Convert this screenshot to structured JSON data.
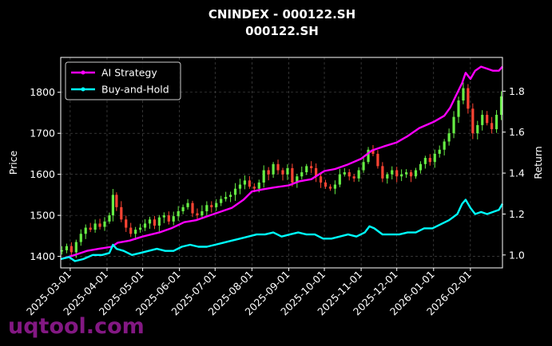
{
  "chart_data": {
    "type": "line",
    "title": "CNINDEX - 000122.SH",
    "subtitle": "000122.SH",
    "ylabel_left": "Price",
    "ylabel_right": "Return",
    "xlabel": "",
    "grid": true,
    "legend_placement": "top-left",
    "x_ticks": [
      "2025-03-01",
      "2025-04-01",
      "2025-05-01",
      "2025-06-01",
      "2025-07-01",
      "2025-08-01",
      "2025-09-01",
      "2025-10-01",
      "2025-11-01",
      "2025-12-01",
      "2026-01-01",
      "2026-02-01"
    ],
    "x_range": [
      "2025-02-21",
      "2026-02-28"
    ],
    "y_left_ticks": [
      1400,
      1500,
      1600,
      1700,
      1800
    ],
    "y_left_range": [
      1372,
      1885
    ],
    "y_right_ticks": [
      1.0,
      1.2,
      1.4,
      1.6,
      1.8
    ],
    "y_right_range": [
      0.937,
      1.965
    ],
    "price_candles": [
      {
        "date": "2025-02-22",
        "price": 1415
      },
      {
        "date": "2025-02-26",
        "price": 1425
      },
      {
        "date": "2025-03-02",
        "price": 1410
      },
      {
        "date": "2025-03-06",
        "price": 1435
      },
      {
        "date": "2025-03-10",
        "price": 1455
      },
      {
        "date": "2025-03-14",
        "price": 1470
      },
      {
        "date": "2025-03-18",
        "price": 1465
      },
      {
        "date": "2025-03-22",
        "price": 1480
      },
      {
        "date": "2025-03-26",
        "price": 1472
      },
      {
        "date": "2025-03-30",
        "price": 1485
      },
      {
        "date": "2025-04-03",
        "price": 1500
      },
      {
        "date": "2025-04-06",
        "price": 1550
      },
      {
        "date": "2025-04-09",
        "price": 1520
      },
      {
        "date": "2025-04-13",
        "price": 1490
      },
      {
        "date": "2025-04-17",
        "price": 1470
      },
      {
        "date": "2025-04-21",
        "price": 1455
      },
      {
        "date": "2025-04-25",
        "price": 1465
      },
      {
        "date": "2025-04-29",
        "price": 1470
      },
      {
        "date": "2025-05-03",
        "price": 1480
      },
      {
        "date": "2025-05-07",
        "price": 1490
      },
      {
        "date": "2025-05-11",
        "price": 1475
      },
      {
        "date": "2025-05-15",
        "price": 1495
      },
      {
        "date": "2025-05-19",
        "price": 1500
      },
      {
        "date": "2025-05-23",
        "price": 1485
      },
      {
        "date": "2025-05-27",
        "price": 1498
      },
      {
        "date": "2025-05-31",
        "price": 1510
      },
      {
        "date": "2025-06-04",
        "price": 1520
      },
      {
        "date": "2025-06-08",
        "price": 1530
      },
      {
        "date": "2025-06-12",
        "price": 1505
      },
      {
        "date": "2025-06-16",
        "price": 1500
      },
      {
        "date": "2025-06-20",
        "price": 1510
      },
      {
        "date": "2025-06-24",
        "price": 1525
      },
      {
        "date": "2025-06-28",
        "price": 1520
      },
      {
        "date": "2025-07-02",
        "price": 1530
      },
      {
        "date": "2025-07-06",
        "price": 1540
      },
      {
        "date": "2025-07-10",
        "price": 1545
      },
      {
        "date": "2025-07-14",
        "price": 1550
      },
      {
        "date": "2025-07-18",
        "price": 1565
      },
      {
        "date": "2025-07-22",
        "price": 1575
      },
      {
        "date": "2025-07-26",
        "price": 1585
      },
      {
        "date": "2025-07-30",
        "price": 1570
      },
      {
        "date": "2025-08-03",
        "price": 1565
      },
      {
        "date": "2025-08-07",
        "price": 1580
      },
      {
        "date": "2025-08-11",
        "price": 1610
      },
      {
        "date": "2025-08-15",
        "price": 1600
      },
      {
        "date": "2025-08-19",
        "price": 1625
      },
      {
        "date": "2025-08-23",
        "price": 1610
      },
      {
        "date": "2025-08-27",
        "price": 1600
      },
      {
        "date": "2025-08-31",
        "price": 1615
      },
      {
        "date": "2025-09-04",
        "price": 1580
      },
      {
        "date": "2025-09-08",
        "price": 1595
      },
      {
        "date": "2025-09-12",
        "price": 1605
      },
      {
        "date": "2025-09-16",
        "price": 1620
      },
      {
        "date": "2025-09-20",
        "price": 1615
      },
      {
        "date": "2025-09-24",
        "price": 1595
      },
      {
        "date": "2025-09-28",
        "price": 1580
      },
      {
        "date": "2025-10-02",
        "price": 1570
      },
      {
        "date": "2025-10-06",
        "price": 1565
      },
      {
        "date": "2025-10-10",
        "price": 1575
      },
      {
        "date": "2025-10-14",
        "price": 1600
      },
      {
        "date": "2025-10-18",
        "price": 1605
      },
      {
        "date": "2025-10-22",
        "price": 1595
      },
      {
        "date": "2025-10-26",
        "price": 1590
      },
      {
        "date": "2025-10-30",
        "price": 1610
      },
      {
        "date": "2025-11-03",
        "price": 1630
      },
      {
        "date": "2025-11-07",
        "price": 1660
      },
      {
        "date": "2025-11-11",
        "price": 1650
      },
      {
        "date": "2025-11-15",
        "price": 1620
      },
      {
        "date": "2025-11-19",
        "price": 1590
      },
      {
        "date": "2025-11-23",
        "price": 1600
      },
      {
        "date": "2025-11-27",
        "price": 1610
      },
      {
        "date": "2025-12-01",
        "price": 1595
      },
      {
        "date": "2025-12-05",
        "price": 1600
      },
      {
        "date": "2025-12-09",
        "price": 1605
      },
      {
        "date": "2025-12-13",
        "price": 1595
      },
      {
        "date": "2025-12-17",
        "price": 1610
      },
      {
        "date": "2025-12-21",
        "price": 1625
      },
      {
        "date": "2025-12-25",
        "price": 1640
      },
      {
        "date": "2025-12-29",
        "price": 1630
      },
      {
        "date": "2026-01-02",
        "price": 1650
      },
      {
        "date": "2026-01-06",
        "price": 1660
      },
      {
        "date": "2026-01-10",
        "price": 1680
      },
      {
        "date": "2026-01-14",
        "price": 1700
      },
      {
        "date": "2026-01-18",
        "price": 1740
      },
      {
        "date": "2026-01-22",
        "price": 1780
      },
      {
        "date": "2026-01-26",
        "price": 1810
      },
      {
        "date": "2026-01-30",
        "price": 1760
      },
      {
        "date": "2026-02-03",
        "price": 1700
      },
      {
        "date": "2026-02-07",
        "price": 1720
      },
      {
        "date": "2026-02-11",
        "price": 1745
      },
      {
        "date": "2026-02-15",
        "price": 1725
      },
      {
        "date": "2026-02-19",
        "price": 1710
      },
      {
        "date": "2026-02-23",
        "price": 1745
      },
      {
        "date": "2026-02-27",
        "price": 1790
      }
    ],
    "series": [
      {
        "name": "AI Strategy",
        "color": "#ff00ff",
        "axis": "right",
        "points": [
          [
            "2025-02-21",
            0.98
          ],
          [
            "2025-03-05",
            1.0
          ],
          [
            "2025-03-15",
            1.02
          ],
          [
            "2025-03-25",
            1.03
          ],
          [
            "2025-04-05",
            1.04
          ],
          [
            "2025-04-10",
            1.06
          ],
          [
            "2025-04-20",
            1.07
          ],
          [
            "2025-05-01",
            1.09
          ],
          [
            "2025-05-15",
            1.11
          ],
          [
            "2025-05-25",
            1.13
          ],
          [
            "2025-06-05",
            1.16
          ],
          [
            "2025-06-15",
            1.17
          ],
          [
            "2025-06-25",
            1.19
          ],
          [
            "2025-07-05",
            1.21
          ],
          [
            "2025-07-15",
            1.23
          ],
          [
            "2025-07-25",
            1.27
          ],
          [
            "2025-08-01",
            1.31
          ],
          [
            "2025-08-10",
            1.32
          ],
          [
            "2025-08-20",
            1.33
          ],
          [
            "2025-09-01",
            1.34
          ],
          [
            "2025-09-10",
            1.36
          ],
          [
            "2025-09-20",
            1.37
          ],
          [
            "2025-10-01",
            1.41
          ],
          [
            "2025-10-10",
            1.42
          ],
          [
            "2025-10-20",
            1.44
          ],
          [
            "2025-11-01",
            1.47
          ],
          [
            "2025-11-10",
            1.51
          ],
          [
            "2025-11-20",
            1.53
          ],
          [
            "2025-12-01",
            1.55
          ],
          [
            "2025-12-10",
            1.58
          ],
          [
            "2025-12-20",
            1.62
          ],
          [
            "2026-01-01",
            1.65
          ],
          [
            "2026-01-10",
            1.68
          ],
          [
            "2026-01-15",
            1.72
          ],
          [
            "2026-01-20",
            1.78
          ],
          [
            "2026-01-25",
            1.84
          ],
          [
            "2026-01-28",
            1.89
          ],
          [
            "2026-02-01",
            1.86
          ],
          [
            "2026-02-05",
            1.9
          ],
          [
            "2026-02-10",
            1.92
          ],
          [
            "2026-02-15",
            1.91
          ],
          [
            "2026-02-20",
            1.9
          ],
          [
            "2026-02-25",
            1.9
          ],
          [
            "2026-02-28",
            1.92
          ]
        ]
      },
      {
        "name": "Buy-and-Hold",
        "color": "#00ffff",
        "axis": "right",
        "points": [
          [
            "2025-02-21",
            0.98
          ],
          [
            "2025-02-28",
            0.99
          ],
          [
            "2025-03-05",
            0.97
          ],
          [
            "2025-03-12",
            0.98
          ],
          [
            "2025-03-20",
            1.0
          ],
          [
            "2025-03-28",
            1.0
          ],
          [
            "2025-04-03",
            1.01
          ],
          [
            "2025-04-06",
            1.05
          ],
          [
            "2025-04-09",
            1.03
          ],
          [
            "2025-04-15",
            1.02
          ],
          [
            "2025-04-22",
            1.0
          ],
          [
            "2025-04-29",
            1.01
          ],
          [
            "2025-05-06",
            1.02
          ],
          [
            "2025-05-13",
            1.03
          ],
          [
            "2025-05-20",
            1.02
          ],
          [
            "2025-05-27",
            1.02
          ],
          [
            "2025-06-03",
            1.04
          ],
          [
            "2025-06-10",
            1.05
          ],
          [
            "2025-06-17",
            1.04
          ],
          [
            "2025-06-24",
            1.04
          ],
          [
            "2025-07-01",
            1.05
          ],
          [
            "2025-07-08",
            1.06
          ],
          [
            "2025-07-15",
            1.07
          ],
          [
            "2025-07-22",
            1.08
          ],
          [
            "2025-07-29",
            1.09
          ],
          [
            "2025-08-05",
            1.1
          ],
          [
            "2025-08-12",
            1.1
          ],
          [
            "2025-08-19",
            1.11
          ],
          [
            "2025-08-26",
            1.09
          ],
          [
            "2025-09-02",
            1.1
          ],
          [
            "2025-09-09",
            1.11
          ],
          [
            "2025-09-16",
            1.1
          ],
          [
            "2025-09-23",
            1.1
          ],
          [
            "2025-09-30",
            1.08
          ],
          [
            "2025-10-07",
            1.08
          ],
          [
            "2025-10-14",
            1.09
          ],
          [
            "2025-10-21",
            1.1
          ],
          [
            "2025-10-28",
            1.09
          ],
          [
            "2025-11-04",
            1.11
          ],
          [
            "2025-11-08",
            1.14
          ],
          [
            "2025-11-12",
            1.13
          ],
          [
            "2025-11-19",
            1.1
          ],
          [
            "2025-11-26",
            1.1
          ],
          [
            "2025-12-03",
            1.1
          ],
          [
            "2025-12-10",
            1.11
          ],
          [
            "2025-12-17",
            1.11
          ],
          [
            "2025-12-24",
            1.13
          ],
          [
            "2025-12-31",
            1.13
          ],
          [
            "2026-01-07",
            1.15
          ],
          [
            "2026-01-14",
            1.17
          ],
          [
            "2026-01-21",
            1.2
          ],
          [
            "2026-01-25",
            1.25
          ],
          [
            "2026-01-28",
            1.27
          ],
          [
            "2026-02-01",
            1.23
          ],
          [
            "2026-02-05",
            1.2
          ],
          [
            "2026-02-10",
            1.21
          ],
          [
            "2026-02-15",
            1.2
          ],
          [
            "2026-02-20",
            1.21
          ],
          [
            "2026-02-25",
            1.22
          ],
          [
            "2026-02-28",
            1.25
          ]
        ]
      }
    ]
  },
  "legend": {
    "items": [
      {
        "label": "AI Strategy",
        "color": "#ff00ff"
      },
      {
        "label": "Buy-and-Hold",
        "color": "#00ffff"
      }
    ]
  },
  "watermark": "uqtool.com",
  "colors": {
    "up": "#66ee44",
    "down": "#ff4433",
    "grid": "#555555",
    "background": "#000000",
    "text": "#ffffff"
  }
}
